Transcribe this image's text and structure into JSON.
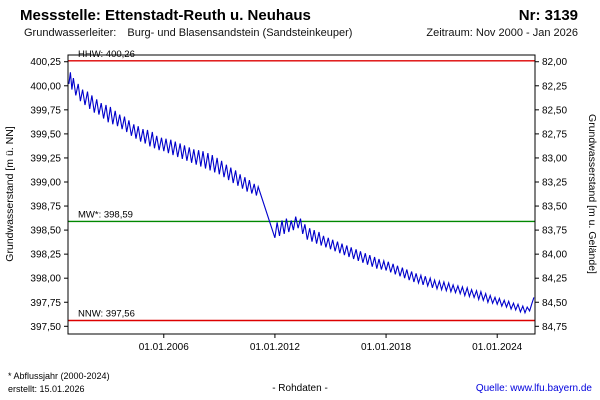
{
  "header": {
    "title": "Messstelle: Ettenstadt-Reuth u. Neuhaus",
    "number": "Nr: 3139",
    "aquifer_label": "Grundwasserleiter:",
    "aquifer_value": "Burg- und Blasensandstein (Sandsteinkeuper)",
    "period": "Zeitraum: Nov 2000 - Jan 2026"
  },
  "footer": {
    "footnote": "* Abflussjahr (2000-2024)",
    "created": "erstellt: 15.01.2026",
    "center_note": "- Rohdaten -",
    "source_label": "Quelle:",
    "source_link": "www.lfu.bayern.de"
  },
  "chart_data": {
    "type": "line",
    "title": "Grundwasserstand Messstelle Ettenstadt-Reuth u. Neuhaus (Nr. 3139), Rohdaten",
    "xlabel": "",
    "ylabel_left": "Grundwasserstand [m ü. NN]",
    "ylabel_right": "Grundwasserstand [m u. Gelände]",
    "x_domain": [
      2000.83,
      2026.04
    ],
    "y_domain": [
      397.42,
      400.32
    ],
    "right_axis_sum": 482.25,
    "grid": false,
    "legend": false,
    "x_ticks": [
      {
        "v": 2006,
        "label": "01.01.2006"
      },
      {
        "v": 2012,
        "label": "01.01.2012"
      },
      {
        "v": 2018,
        "label": "01.01.2018"
      },
      {
        "v": 2024,
        "label": "01.01.2024"
      }
    ],
    "y_ticks_left": [
      {
        "v": 400.25,
        "label": "400,25"
      },
      {
        "v": 400.0,
        "label": "400,00"
      },
      {
        "v": 399.75,
        "label": "399,75"
      },
      {
        "v": 399.5,
        "label": "399,50"
      },
      {
        "v": 399.25,
        "label": "399,25"
      },
      {
        "v": 399.0,
        "label": "399,00"
      },
      {
        "v": 398.75,
        "label": "398,75"
      },
      {
        "v": 398.5,
        "label": "398,50"
      },
      {
        "v": 398.25,
        "label": "398,25"
      },
      {
        "v": 398.0,
        "label": "398,00"
      },
      {
        "v": 397.75,
        "label": "397,75"
      },
      {
        "v": 397.5,
        "label": "397,50"
      }
    ],
    "y_ticks_right": [
      {
        "v": 82.0,
        "label": "82,00"
      },
      {
        "v": 82.25,
        "label": "82,25"
      },
      {
        "v": 82.5,
        "label": "82,50"
      },
      {
        "v": 82.75,
        "label": "82,75"
      },
      {
        "v": 83.0,
        "label": "83,00"
      },
      {
        "v": 83.25,
        "label": "83,25"
      },
      {
        "v": 83.5,
        "label": "83,50"
      },
      {
        "v": 83.75,
        "label": "83,75"
      },
      {
        "v": 84.0,
        "label": "84,00"
      },
      {
        "v": 84.25,
        "label": "84,25"
      },
      {
        "v": 84.5,
        "label": "84,50"
      },
      {
        "v": 84.75,
        "label": "84,75"
      }
    ],
    "references": [
      {
        "name": "HHW",
        "label": "HHW: 400,26",
        "value": 400.26,
        "color": "#dd0000"
      },
      {
        "name": "MW",
        "label": "MW*: 398,59",
        "value": 398.59,
        "color": "#008800"
      },
      {
        "name": "NNW",
        "label": "NNW: 397,56",
        "value": 397.56,
        "color": "#dd0000"
      }
    ],
    "series": [
      {
        "name": "Grundwasserstand (Rohdaten)",
        "color": "#0000cc",
        "points": [
          [
            2000.88,
            400.02
          ],
          [
            2000.96,
            400.14
          ],
          [
            2001.04,
            399.96
          ],
          [
            2001.12,
            400.08
          ],
          [
            2001.25,
            399.9
          ],
          [
            2001.38,
            400.02
          ],
          [
            2001.5,
            399.84
          ],
          [
            2001.62,
            399.96
          ],
          [
            2001.75,
            399.8
          ],
          [
            2001.88,
            399.94
          ],
          [
            2002.0,
            399.76
          ],
          [
            2002.12,
            399.9
          ],
          [
            2002.25,
            399.72
          ],
          [
            2002.38,
            399.86
          ],
          [
            2002.5,
            399.7
          ],
          [
            2002.62,
            399.82
          ],
          [
            2002.75,
            399.66
          ],
          [
            2002.88,
            399.8
          ],
          [
            2003.0,
            399.62
          ],
          [
            2003.12,
            399.78
          ],
          [
            2003.25,
            399.6
          ],
          [
            2003.38,
            399.74
          ],
          [
            2003.5,
            399.58
          ],
          [
            2003.62,
            399.7
          ],
          [
            2003.75,
            399.55
          ],
          [
            2003.88,
            399.68
          ],
          [
            2004.0,
            399.52
          ],
          [
            2004.12,
            399.64
          ],
          [
            2004.25,
            399.48
          ],
          [
            2004.38,
            399.6
          ],
          [
            2004.5,
            399.45
          ],
          [
            2004.62,
            399.58
          ],
          [
            2004.75,
            399.42
          ],
          [
            2004.88,
            399.55
          ],
          [
            2005.0,
            399.4
          ],
          [
            2005.12,
            399.54
          ],
          [
            2005.25,
            399.37
          ],
          [
            2005.38,
            399.52
          ],
          [
            2005.5,
            399.35
          ],
          [
            2005.62,
            399.48
          ],
          [
            2005.75,
            399.33
          ],
          [
            2005.88,
            399.46
          ],
          [
            2006.0,
            399.32
          ],
          [
            2006.12,
            399.45
          ],
          [
            2006.25,
            399.3
          ],
          [
            2006.38,
            399.44
          ],
          [
            2006.5,
            399.28
          ],
          [
            2006.62,
            399.42
          ],
          [
            2006.75,
            399.26
          ],
          [
            2006.88,
            399.4
          ],
          [
            2007.0,
            399.24
          ],
          [
            2007.12,
            399.38
          ],
          [
            2007.25,
            399.22
          ],
          [
            2007.38,
            399.36
          ],
          [
            2007.5,
            399.2
          ],
          [
            2007.62,
            399.34
          ],
          [
            2007.75,
            399.18
          ],
          [
            2007.88,
            399.33
          ],
          [
            2008.0,
            399.16
          ],
          [
            2008.12,
            399.32
          ],
          [
            2008.25,
            399.14
          ],
          [
            2008.38,
            399.3
          ],
          [
            2008.5,
            399.12
          ],
          [
            2008.62,
            399.28
          ],
          [
            2008.75,
            399.1
          ],
          [
            2008.88,
            399.25
          ],
          [
            2009.0,
            399.08
          ],
          [
            2009.12,
            399.22
          ],
          [
            2009.25,
            399.05
          ],
          [
            2009.38,
            399.18
          ],
          [
            2009.5,
            399.02
          ],
          [
            2009.62,
            399.15
          ],
          [
            2009.75,
            398.99
          ],
          [
            2009.88,
            399.12
          ],
          [
            2010.0,
            398.96
          ],
          [
            2010.12,
            399.08
          ],
          [
            2010.25,
            398.93
          ],
          [
            2010.38,
            399.05
          ],
          [
            2010.5,
            398.9
          ],
          [
            2010.62,
            399.02
          ],
          [
            2010.75,
            398.88
          ],
          [
            2010.88,
            398.98
          ],
          [
            2011.0,
            398.86
          ],
          [
            2011.1,
            398.95
          ],
          [
            2012.0,
            398.42
          ],
          [
            2012.12,
            398.58
          ],
          [
            2012.25,
            398.44
          ],
          [
            2012.38,
            398.6
          ],
          [
            2012.5,
            398.46
          ],
          [
            2012.62,
            398.62
          ],
          [
            2012.75,
            398.48
          ],
          [
            2012.88,
            398.6
          ],
          [
            2013.0,
            398.5
          ],
          [
            2013.12,
            398.64
          ],
          [
            2013.25,
            398.52
          ],
          [
            2013.38,
            398.62
          ],
          [
            2013.5,
            398.46
          ],
          [
            2013.62,
            398.56
          ],
          [
            2013.75,
            398.4
          ],
          [
            2013.88,
            398.52
          ],
          [
            2014.0,
            398.38
          ],
          [
            2014.12,
            398.5
          ],
          [
            2014.25,
            398.36
          ],
          [
            2014.38,
            398.48
          ],
          [
            2014.5,
            398.34
          ],
          [
            2014.62,
            398.44
          ],
          [
            2014.75,
            398.32
          ],
          [
            2014.88,
            398.42
          ],
          [
            2015.0,
            398.3
          ],
          [
            2015.12,
            398.4
          ],
          [
            2015.25,
            398.28
          ],
          [
            2015.38,
            398.38
          ],
          [
            2015.5,
            398.26
          ],
          [
            2015.62,
            398.36
          ],
          [
            2015.75,
            398.24
          ],
          [
            2015.88,
            398.34
          ],
          [
            2016.0,
            398.22
          ],
          [
            2016.12,
            398.32
          ],
          [
            2016.25,
            398.2
          ],
          [
            2016.38,
            398.3
          ],
          [
            2016.5,
            398.18
          ],
          [
            2016.62,
            398.28
          ],
          [
            2016.75,
            398.16
          ],
          [
            2016.88,
            398.26
          ],
          [
            2017.0,
            398.14
          ],
          [
            2017.12,
            398.24
          ],
          [
            2017.25,
            398.12
          ],
          [
            2017.38,
            398.22
          ],
          [
            2017.5,
            398.1
          ],
          [
            2017.62,
            398.2
          ],
          [
            2017.75,
            398.09
          ],
          [
            2017.88,
            398.18
          ],
          [
            2018.0,
            398.08
          ],
          [
            2018.12,
            398.17
          ],
          [
            2018.25,
            398.06
          ],
          [
            2018.38,
            398.15
          ],
          [
            2018.5,
            398.04
          ],
          [
            2018.62,
            398.13
          ],
          [
            2018.75,
            398.02
          ],
          [
            2018.88,
            398.11
          ],
          [
            2019.0,
            398.0
          ],
          [
            2019.12,
            398.09
          ],
          [
            2019.25,
            397.98
          ],
          [
            2019.38,
            398.07
          ],
          [
            2019.5,
            397.96
          ],
          [
            2019.62,
            398.05
          ],
          [
            2019.75,
            397.95
          ],
          [
            2019.88,
            398.03
          ],
          [
            2020.0,
            397.93
          ],
          [
            2020.12,
            398.02
          ],
          [
            2020.25,
            397.92
          ],
          [
            2020.38,
            398.0
          ],
          [
            2020.5,
            397.9
          ],
          [
            2020.62,
            397.98
          ],
          [
            2020.75,
            397.89
          ],
          [
            2020.88,
            397.97
          ],
          [
            2021.0,
            397.88
          ],
          [
            2021.12,
            397.96
          ],
          [
            2021.25,
            397.87
          ],
          [
            2021.38,
            397.95
          ],
          [
            2021.5,
            397.86
          ],
          [
            2021.62,
            397.93
          ],
          [
            2021.75,
            397.85
          ],
          [
            2021.88,
            397.92
          ],
          [
            2022.0,
            397.84
          ],
          [
            2022.12,
            397.91
          ],
          [
            2022.25,
            397.82
          ],
          [
            2022.38,
            397.9
          ],
          [
            2022.5,
            397.81
          ],
          [
            2022.62,
            397.88
          ],
          [
            2022.75,
            397.8
          ],
          [
            2022.88,
            397.87
          ],
          [
            2023.0,
            397.78
          ],
          [
            2023.12,
            397.86
          ],
          [
            2023.25,
            397.77
          ],
          [
            2023.38,
            397.84
          ],
          [
            2023.5,
            397.75
          ],
          [
            2023.62,
            397.82
          ],
          [
            2023.75,
            397.74
          ],
          [
            2023.88,
            397.8
          ],
          [
            2024.0,
            397.73
          ],
          [
            2024.12,
            397.79
          ],
          [
            2024.25,
            397.71
          ],
          [
            2024.38,
            397.77
          ],
          [
            2024.5,
            397.7
          ],
          [
            2024.62,
            397.76
          ],
          [
            2024.75,
            397.68
          ],
          [
            2024.88,
            397.74
          ],
          [
            2025.0,
            397.67
          ],
          [
            2025.12,
            397.73
          ],
          [
            2025.25,
            397.65
          ],
          [
            2025.38,
            397.71
          ],
          [
            2025.5,
            397.64
          ],
          [
            2025.62,
            397.7
          ],
          [
            2025.75,
            397.66
          ],
          [
            2025.88,
            397.74
          ],
          [
            2025.98,
            397.8
          ]
        ]
      }
    ]
  }
}
